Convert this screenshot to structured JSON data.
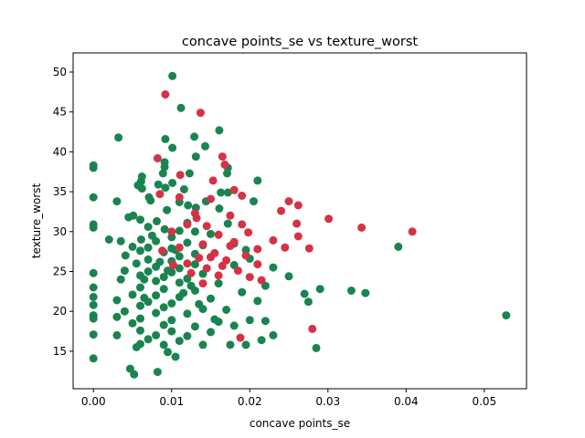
{
  "chart_data": {
    "type": "scatter",
    "title": "concave points_se vs texture_worst",
    "xlabel": "concave points_se",
    "ylabel": "texture_worst",
    "xlim": [
      -0.0026,
      0.0554
    ],
    "ylim": [
      10.3,
      52.4
    ],
    "xticks": [
      0.0,
      0.01,
      0.02,
      0.03,
      0.04,
      0.05
    ],
    "xtick_labels": [
      "0.00",
      "0.01",
      "0.02",
      "0.03",
      "0.04",
      "0.05"
    ],
    "yticks": [
      15,
      20,
      25,
      30,
      35,
      40,
      45,
      50
    ],
    "ytick_labels": [
      "15",
      "20",
      "25",
      "30",
      "35",
      "40",
      "45",
      "50"
    ],
    "grid": false,
    "colors": {
      "class_a": "#1a8450",
      "class_b": "#d43346"
    },
    "series": [
      {
        "color": "#1a8450",
        "points": [
          [
            0.0101,
            49.5
          ],
          [
            0.0112,
            45.5
          ],
          [
            0.0161,
            42.7
          ],
          [
            0.0032,
            41.8
          ],
          [
            0.0092,
            41.6
          ],
          [
            0.0129,
            41.9
          ],
          [
            0.0143,
            40.7
          ],
          [
            0.0101,
            40.5
          ],
          [
            0.0,
            38.3
          ],
          [
            0.0,
            38.0
          ],
          [
            0.0131,
            39.4
          ],
          [
            0.0091,
            38.7
          ],
          [
            0.0091,
            38.1
          ],
          [
            0.0172,
            38.0
          ],
          [
            0.0123,
            37.3
          ],
          [
            0.0171,
            37.3
          ],
          [
            0.0089,
            37.3
          ],
          [
            0.0062,
            36.9
          ],
          [
            0.0061,
            36.3
          ],
          [
            0.0101,
            36.1
          ],
          [
            0.021,
            36.4
          ],
          [
            0.0057,
            35.8
          ],
          [
            0.0083,
            35.9
          ],
          [
            0.0092,
            35.5
          ],
          [
            0.0062,
            35.4
          ],
          [
            0.0116,
            35.3
          ],
          [
            0.0163,
            34.9
          ],
          [
            0.0172,
            34.9
          ],
          [
            0.0071,
            34.3
          ],
          [
            0.0,
            34.3
          ],
          [
            0.003,
            33.8
          ],
          [
            0.0073,
            33.9
          ],
          [
            0.011,
            33.7
          ],
          [
            0.0144,
            33.8
          ],
          [
            0.0205,
            33.8
          ],
          [
            0.0121,
            33.3
          ],
          [
            0.0131,
            33.0
          ],
          [
            0.0161,
            32.9
          ],
          [
            0.0094,
            32.7
          ],
          [
            0.0051,
            32.0
          ],
          [
            0.0045,
            31.8
          ],
          [
            0.006,
            31.5
          ],
          [
            0.0081,
            31.3
          ],
          [
            0.012,
            31.1
          ],
          [
            0.0172,
            31.0
          ],
          [
            0.0,
            30.9
          ],
          [
            0.0,
            30.5
          ],
          [
            0.007,
            30.6
          ],
          [
            0.0091,
            30.3
          ],
          [
            0.011,
            30.1
          ],
          [
            0.013,
            30.0
          ],
          [
            0.015,
            29.7
          ],
          [
            0.01,
            29.3
          ],
          [
            0.0061,
            29.0
          ],
          [
            0.002,
            29.0
          ],
          [
            0.0035,
            28.8
          ],
          [
            0.008,
            28.8
          ],
          [
            0.012,
            28.6
          ],
          [
            0.014,
            28.3
          ],
          [
            0.018,
            28.5
          ],
          [
            0.005,
            28.1
          ],
          [
            0.007,
            28.0
          ],
          [
            0.01,
            27.9
          ],
          [
            0.039,
            28.1
          ],
          [
            0.0195,
            27.7
          ],
          [
            0.006,
            27.6
          ],
          [
            0.009,
            27.4
          ],
          [
            0.013,
            27.2
          ],
          [
            0.0041,
            27.0
          ],
          [
            0.011,
            26.9
          ],
          [
            0.015,
            26.8
          ],
          [
            0.02,
            26.6
          ],
          [
            0.007,
            26.5
          ],
          [
            0.01,
            26.3
          ],
          [
            0.0055,
            26.0
          ],
          [
            0.013,
            25.9
          ],
          [
            0.018,
            25.8
          ],
          [
            0.008,
            25.6
          ],
          [
            0.011,
            25.4
          ],
          [
            0.023,
            25.5
          ],
          [
            0.004,
            25.1
          ],
          [
            0.007,
            25.0
          ],
          [
            0.01,
            24.9
          ],
          [
            0.0,
            24.8
          ],
          [
            0.014,
            24.7
          ],
          [
            0.006,
            24.5
          ],
          [
            0.009,
            24.3
          ],
          [
            0.012,
            24.1
          ],
          [
            0.025,
            24.4
          ],
          [
            0.0035,
            24.0
          ],
          [
            0.008,
            23.8
          ],
          [
            0.011,
            23.6
          ],
          [
            0.016,
            23.5
          ],
          [
            0.022,
            23.2
          ],
          [
            0.0,
            23.0
          ],
          [
            0.006,
            23.0
          ],
          [
            0.009,
            22.8
          ],
          [
            0.013,
            22.6
          ],
          [
            0.019,
            22.4
          ],
          [
            0.027,
            22.2
          ],
          [
            0.033,
            22.6
          ],
          [
            0.0348,
            22.3
          ],
          [
            0.029,
            22.8
          ],
          [
            0.005,
            22.1
          ],
          [
            0.008,
            22.0
          ],
          [
            0.011,
            21.8
          ],
          [
            0.015,
            21.6
          ],
          [
            0.0,
            21.8
          ],
          [
            0.003,
            21.4
          ],
          [
            0.007,
            21.2
          ],
          [
            0.01,
            21.0
          ],
          [
            0.021,
            21.3
          ],
          [
            0.0275,
            21.2
          ],
          [
            0.0,
            20.8
          ],
          [
            0.006,
            20.7
          ],
          [
            0.009,
            20.5
          ],
          [
            0.014,
            20.3
          ],
          [
            0.017,
            20.2
          ],
          [
            0.004,
            20.0
          ],
          [
            0.008,
            19.8
          ],
          [
            0.012,
            19.7
          ],
          [
            0.0,
            19.5
          ],
          [
            0.0,
            19.1
          ],
          [
            0.003,
            19.3
          ],
          [
            0.006,
            19.1
          ],
          [
            0.01,
            18.9
          ],
          [
            0.016,
            18.7
          ],
          [
            0.02,
            18.9
          ],
          [
            0.022,
            18.8
          ],
          [
            0.0528,
            19.5
          ],
          [
            0.005,
            18.5
          ],
          [
            0.009,
            18.3
          ],
          [
            0.013,
            18.1
          ],
          [
            0.018,
            18.2
          ],
          [
            0.006,
            17.6
          ],
          [
            0.01,
            17.5
          ],
          [
            0.015,
            17.4
          ],
          [
            0.0,
            17.1
          ],
          [
            0.003,
            17.0
          ],
          [
            0.008,
            17.0
          ],
          [
            0.012,
            16.9
          ],
          [
            0.023,
            17.0
          ],
          [
            0.007,
            16.5
          ],
          [
            0.011,
            16.3
          ],
          [
            0.0215,
            16.4
          ],
          [
            0.006,
            15.9
          ],
          [
            0.009,
            15.8
          ],
          [
            0.014,
            15.8
          ],
          [
            0.0175,
            15.8
          ],
          [
            0.0195,
            15.8
          ],
          [
            0.0285,
            15.4
          ],
          [
            0.0055,
            15.5
          ],
          [
            0.0095,
            14.9
          ],
          [
            0.0,
            14.1
          ],
          [
            0.0105,
            14.3
          ],
          [
            0.0047,
            12.8
          ],
          [
            0.0052,
            12.1
          ],
          [
            0.0082,
            12.4
          ],
          [
            0.0065,
            24.0
          ],
          [
            0.0085,
            26.2
          ],
          [
            0.0105,
            27.7
          ],
          [
            0.0075,
            29.5
          ],
          [
            0.0115,
            22.3
          ],
          [
            0.0135,
            20.9
          ],
          [
            0.0155,
            19.0
          ],
          [
            0.0065,
            21.7
          ],
          [
            0.0095,
            25.1
          ],
          [
            0.0125,
            23.2
          ]
        ]
      },
      {
        "color": "#d43346",
        "points": [
          [
            0.0092,
            47.2
          ],
          [
            0.0137,
            44.9
          ],
          [
            0.0082,
            39.2
          ],
          [
            0.0165,
            39.4
          ],
          [
            0.0168,
            38.4
          ],
          [
            0.0111,
            37.1
          ],
          [
            0.0153,
            36.4
          ],
          [
            0.018,
            35.2
          ],
          [
            0.0085,
            34.7
          ],
          [
            0.011,
            34.3
          ],
          [
            0.015,
            34.1
          ],
          [
            0.019,
            34.5
          ],
          [
            0.025,
            33.8
          ],
          [
            0.0262,
            33.3
          ],
          [
            0.024,
            32.6
          ],
          [
            0.013,
            32.3
          ],
          [
            0.0175,
            32.0
          ],
          [
            0.0301,
            31.6
          ],
          [
            0.026,
            31.0
          ],
          [
            0.012,
            30.9
          ],
          [
            0.0145,
            30.7
          ],
          [
            0.019,
            30.9
          ],
          [
            0.0343,
            30.5
          ],
          [
            0.0408,
            30.0
          ],
          [
            0.01,
            30.0
          ],
          [
            0.016,
            29.6
          ],
          [
            0.0262,
            29.4
          ],
          [
            0.023,
            28.9
          ],
          [
            0.018,
            28.7
          ],
          [
            0.014,
            28.4
          ],
          [
            0.011,
            28.0
          ],
          [
            0.021,
            27.8
          ],
          [
            0.0245,
            28.0
          ],
          [
            0.0276,
            27.9
          ],
          [
            0.0155,
            27.3
          ],
          [
            0.0195,
            27.0
          ],
          [
            0.0135,
            26.7
          ],
          [
            0.017,
            26.4
          ],
          [
            0.012,
            26.0
          ],
          [
            0.0165,
            25.7
          ],
          [
            0.021,
            25.9
          ],
          [
            0.0145,
            25.4
          ],
          [
            0.0185,
            25.1
          ],
          [
            0.0125,
            24.8
          ],
          [
            0.016,
            24.5
          ],
          [
            0.02,
            24.3
          ],
          [
            0.0215,
            23.9
          ],
          [
            0.014,
            23.5
          ],
          [
            0.028,
            17.8
          ],
          [
            0.0188,
            16.7
          ],
          [
            0.015,
            26.8
          ],
          [
            0.0175,
            28.2
          ],
          [
            0.0198,
            29.9
          ],
          [
            0.0132,
            31.7
          ],
          [
            0.0088,
            27.6
          ],
          [
            0.0102,
            25.8
          ]
        ]
      }
    ]
  }
}
